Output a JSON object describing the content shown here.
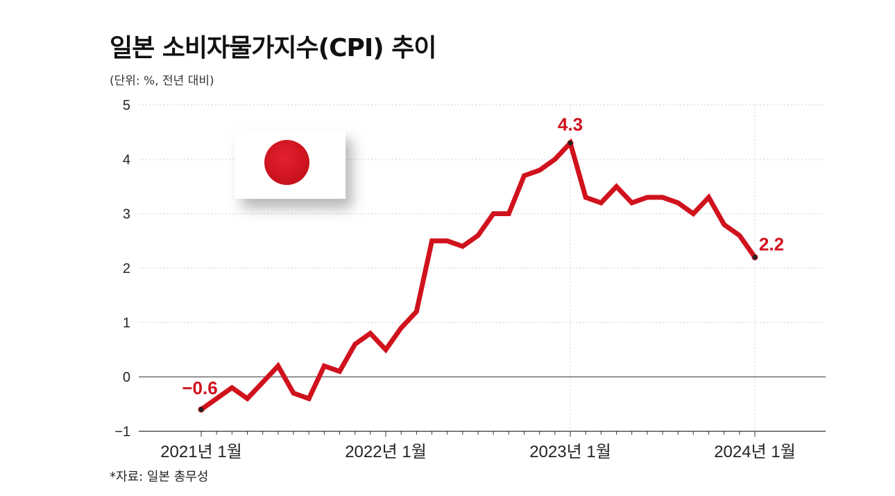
{
  "header": {
    "title": "일본 소비자물가지수(CPI) 추이",
    "unit": "(단위: %, 전년 대비)"
  },
  "source": "*자료: 일본 총무성",
  "flag": {
    "country": "Japan",
    "disc_color": "#d0121d"
  },
  "colors": {
    "line": "#d0121d",
    "grid": "#cfcfcf",
    "axis": "#333333"
  },
  "chart_data": {
    "type": "line",
    "title": "일본 소비자물가지수(CPI) 추이",
    "ylabel": "",
    "xlabel": "",
    "ylim": [
      -1,
      5
    ],
    "yticks": [
      -1,
      0,
      1,
      2,
      3,
      4,
      5
    ],
    "xtick_labels": [
      "2021년 1월",
      "2022년 1월",
      "2023년 1월",
      "2024년 1월"
    ],
    "x": [
      "2021-01",
      "2021-02",
      "2021-03",
      "2021-04",
      "2021-05",
      "2021-06",
      "2021-07",
      "2021-08",
      "2021-09",
      "2021-10",
      "2021-11",
      "2021-12",
      "2022-01",
      "2022-02",
      "2022-03",
      "2022-04",
      "2022-05",
      "2022-06",
      "2022-07",
      "2022-08",
      "2022-09",
      "2022-10",
      "2022-11",
      "2022-12",
      "2023-01",
      "2023-02",
      "2023-03",
      "2023-04",
      "2023-05",
      "2023-06",
      "2023-07",
      "2023-08",
      "2023-09",
      "2023-10",
      "2023-11",
      "2023-12",
      "2024-01"
    ],
    "series": [
      {
        "values": [
          -0.6,
          -0.4,
          -0.2,
          -0.4,
          -0.1,
          0.2,
          -0.3,
          -0.4,
          0.2,
          0.1,
          0.6,
          0.8,
          0.5,
          0.9,
          1.2,
          2.5,
          2.5,
          2.4,
          2.6,
          3.0,
          3.0,
          3.7,
          3.8,
          4.0,
          4.3,
          3.3,
          3.2,
          3.5,
          3.2,
          3.3,
          3.3,
          3.2,
          3.0,
          3.3,
          2.8,
          2.6,
          2.2
        ]
      }
    ],
    "annotations": [
      {
        "x": "2021-01",
        "label": "−0.6"
      },
      {
        "x": "2023-01",
        "label": "4.3"
      },
      {
        "x": "2024-01",
        "label": "2.2"
      }
    ],
    "grid": true
  }
}
